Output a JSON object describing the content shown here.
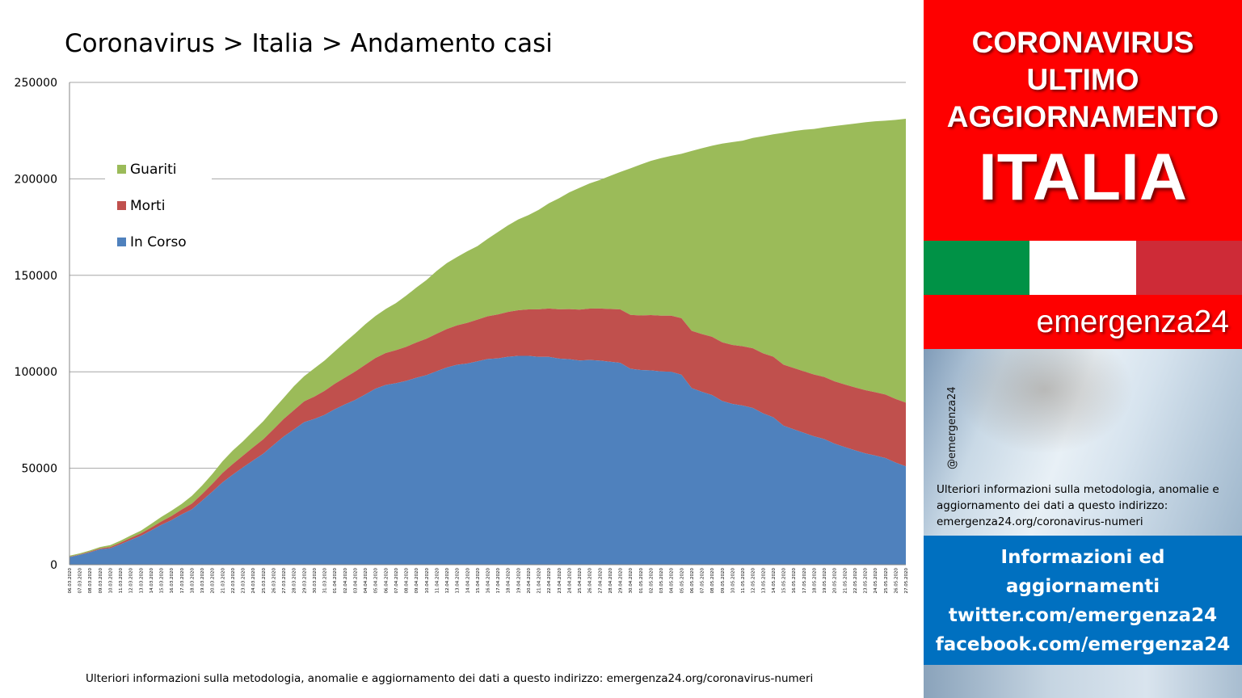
{
  "title": "Coronavirus > Italia > Andamento casi",
  "footnote": "Ulteriori informazioni sulla metodologia, anomalie e aggiornamento dei dati a questo indirizzo: emergenza24.org/coronavirus-numeri",
  "sidebar": {
    "header_lines": [
      "CORONAVIRUS",
      "ULTIMO",
      "AGGIORNAMENTO"
    ],
    "country": "ITALIA",
    "brand": "emergenza24",
    "handle": "@emergenza24",
    "note": "Ulteriori informazioni sulla metodologia, anomalie e aggiornamento dei dati a questo indirizzo: emergenza24.org/coronavirus-numeri",
    "info_lines": [
      "Informazioni ed",
      "aggiornamenti",
      "twitter.com/emergenza24",
      "facebook.com/emergenza24"
    ],
    "colors": {
      "red": "#fe0000",
      "blue": "#0070c0",
      "flag_green": "#009246",
      "flag_white": "#ffffff",
      "flag_red": "#ce2b37"
    }
  },
  "chart_data": {
    "type": "area",
    "stacked": true,
    "title": "Coronavirus > Italia > Andamento casi",
    "xlabel": "",
    "ylabel": "",
    "ylim": [
      0,
      250000
    ],
    "yticks": [
      0,
      50000,
      100000,
      150000,
      200000,
      250000
    ],
    "grid": "horizontal",
    "legend_position": "top-left",
    "x": [
      "06.03.2020",
      "07.03.2020",
      "08.03.2020",
      "09.03.2020",
      "10.03.2020",
      "11.03.2020",
      "12.03.2020",
      "13.03.2020",
      "14.03.2020",
      "15.03.2020",
      "16.03.2020",
      "17.03.2020",
      "18.03.2020",
      "19.03.2020",
      "20.03.2020",
      "21.03.2020",
      "22.03.2020",
      "23.03.2020",
      "24.03.2020",
      "25.03.2020",
      "26.03.2020",
      "27.03.2020",
      "28.03.2020",
      "29.03.2020",
      "30.03.2020",
      "31.03.2020",
      "01.04.2020",
      "02.04.2020",
      "03.04.2020",
      "04.04.2020",
      "05.04.2020",
      "06.04.2020",
      "07.04.2020",
      "08.04.2020",
      "09.04.2020",
      "10.04.2020",
      "11.04.2020",
      "12.04.2020",
      "13.04.2020",
      "14.04.2020",
      "15.04.2020",
      "16.04.2020",
      "17.04.2020",
      "18.04.2020",
      "19.04.2020",
      "20.04.2020",
      "21.04.2020",
      "22.04.2020",
      "23.04.2020",
      "24.04.2020",
      "25.04.2020",
      "26.04.2020",
      "27.04.2020",
      "28.04.2020",
      "29.04.2020",
      "30.04.2020",
      "01.05.2020",
      "02.05.2020",
      "03.05.2020",
      "04.05.2020",
      "05.05.2020",
      "06.05.2020",
      "07.05.2020",
      "08.05.2020",
      "09.05.2020",
      "10.05.2020",
      "11.05.2020",
      "12.05.2020",
      "13.05.2020",
      "14.05.2020",
      "15.05.2020",
      "16.05.2020",
      "17.05.2020",
      "18.05.2020",
      "19.05.2020",
      "20.05.2020",
      "21.05.2020",
      "22.05.2020",
      "23.05.2020",
      "24.05.2020",
      "25.05.2020",
      "26.05.2020",
      "27.05.2020"
    ],
    "series": [
      {
        "name": "In Corso",
        "color": "#4f81bd",
        "values": [
          3916,
          5061,
          6387,
          7985,
          8514,
          10590,
          12839,
          14955,
          17750,
          20603,
          23073,
          26062,
          28710,
          33190,
          37860,
          42681,
          46638,
          50418,
          54030,
          57521,
          62013,
          66414,
          70065,
          73880,
          75528,
          77635,
          80572,
          83049,
          85388,
          88274,
          91246,
          93187,
          94067,
          95262,
          96877,
          98273,
          100269,
          102253,
          103616,
          104291,
          105418,
          106607,
          106962,
          107771,
          108257,
          108237,
          107709,
          107699,
          106848,
          106527,
          105847,
          106103,
          105813,
          105205,
          104657,
          101551,
          100943,
          100704,
          100179,
          99980,
          98467,
          91528,
          89624,
          87961,
          84842,
          83324,
          82488,
          81266,
          78457,
          76440,
          72070,
          70187,
          68351,
          66553,
          65129,
          62752,
          60960,
          59322,
          57752,
          56594,
          55300,
          52942,
          50966
        ]
      },
      {
        "name": "Morti",
        "color": "#c0504d",
        "values": [
          197,
          233,
          366,
          463,
          631,
          827,
          1016,
          1266,
          1441,
          1809,
          2158,
          2503,
          2978,
          3405,
          4032,
          4825,
          5476,
          6077,
          6820,
          7503,
          8165,
          9134,
          10023,
          10779,
          11591,
          12428,
          13155,
          13915,
          14681,
          15362,
          15887,
          16523,
          17127,
          17669,
          18279,
          18849,
          19468,
          19899,
          20465,
          21067,
          21645,
          22170,
          22745,
          23227,
          23660,
          24114,
          24648,
          25085,
          25549,
          25969,
          26384,
          26644,
          26977,
          27359,
          27682,
          27967,
          28236,
          28710,
          28884,
          29079,
          29315,
          29684,
          29958,
          30201,
          30395,
          30560,
          30739,
          30911,
          31106,
          31368,
          31610,
          31763,
          31908,
          32007,
          32169,
          32330,
          32486,
          32616,
          32735,
          32785,
          32877,
          32955,
          33072
        ]
      },
      {
        "name": "Guariti",
        "color": "#9bbb59",
        "values": [
          523,
          589,
          622,
          724,
          1004,
          1045,
          1258,
          1439,
          1966,
          2335,
          2749,
          2941,
          4025,
          4440,
          5129,
          6072,
          7024,
          7432,
          8326,
          9362,
          10361,
          10950,
          12384,
          13030,
          14620,
          15729,
          16847,
          18278,
          19758,
          20996,
          21815,
          22837,
          24392,
          26491,
          28470,
          30455,
          32534,
          34211,
          35435,
          37130,
          38092,
          40164,
          42727,
          44927,
          47055,
          48877,
          51600,
          54543,
          57576,
          60498,
          63120,
          64928,
          66624,
          68941,
          71252,
          75945,
          78249,
          79914,
          81654,
          82879,
          85231,
          93245,
          96276,
          99023,
          103031,
          105186,
          106587,
          109039,
          112541,
          115288,
          120205,
          122810,
          125176,
          127326,
          129401,
          132282,
          134560,
          136720,
          138840,
          140479,
          141981,
          144658,
          147101
        ]
      }
    ]
  }
}
